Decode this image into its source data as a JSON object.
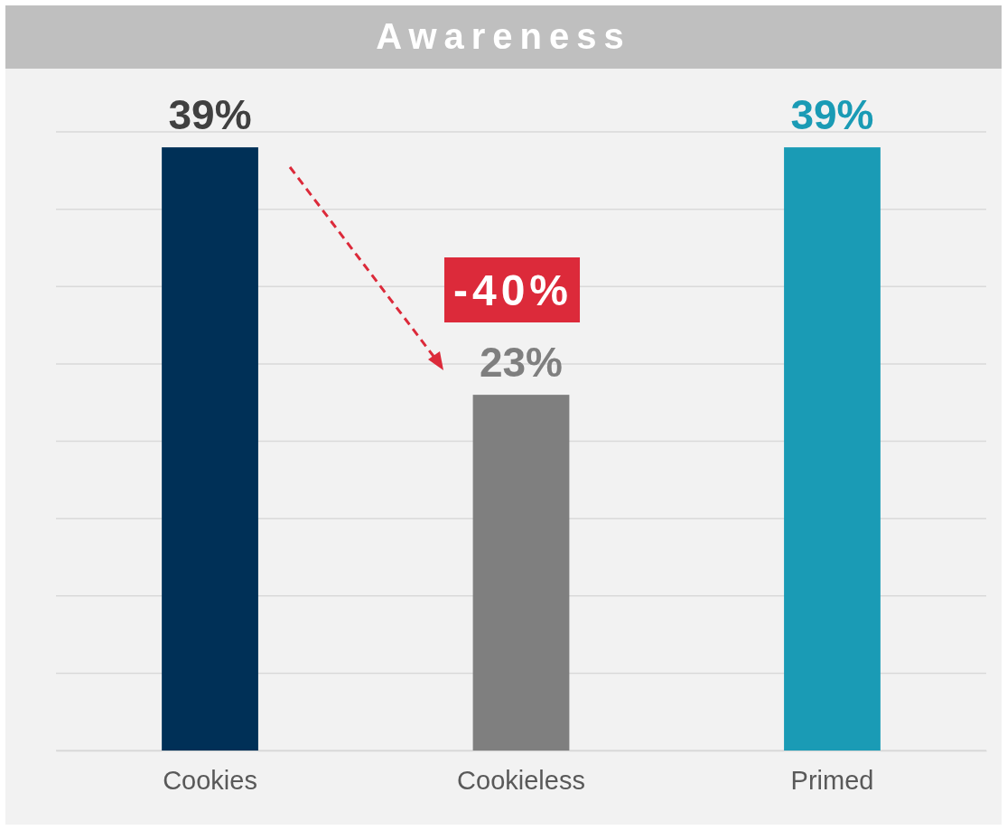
{
  "chart_data": {
    "type": "bar",
    "title": "Awareness",
    "categories": [
      "Cookies",
      "Cookieless",
      "Primed"
    ],
    "values": [
      39,
      23,
      39
    ],
    "colors": [
      "#003057",
      "#7f7f7f",
      "#1a9bb5"
    ],
    "value_labels": [
      "39%",
      "23%",
      "39%"
    ],
    "ylim": [
      0,
      40
    ],
    "yticks": [
      {
        "value": 0,
        "label": null
      },
      {
        "value": 5,
        "label": null
      },
      {
        "value": 10,
        "label": null
      },
      {
        "value": 15,
        "label": null
      },
      {
        "value": 20,
        "label": null
      },
      {
        "value": 25,
        "label": null
      },
      {
        "value": 30,
        "label": null
      },
      {
        "value": 35,
        "label": null
      },
      {
        "value": 40,
        "label": null
      }
    ],
    "tick_labels": "x",
    "grid": "y",
    "annotations": [
      "-40%"
    ]
  }
}
